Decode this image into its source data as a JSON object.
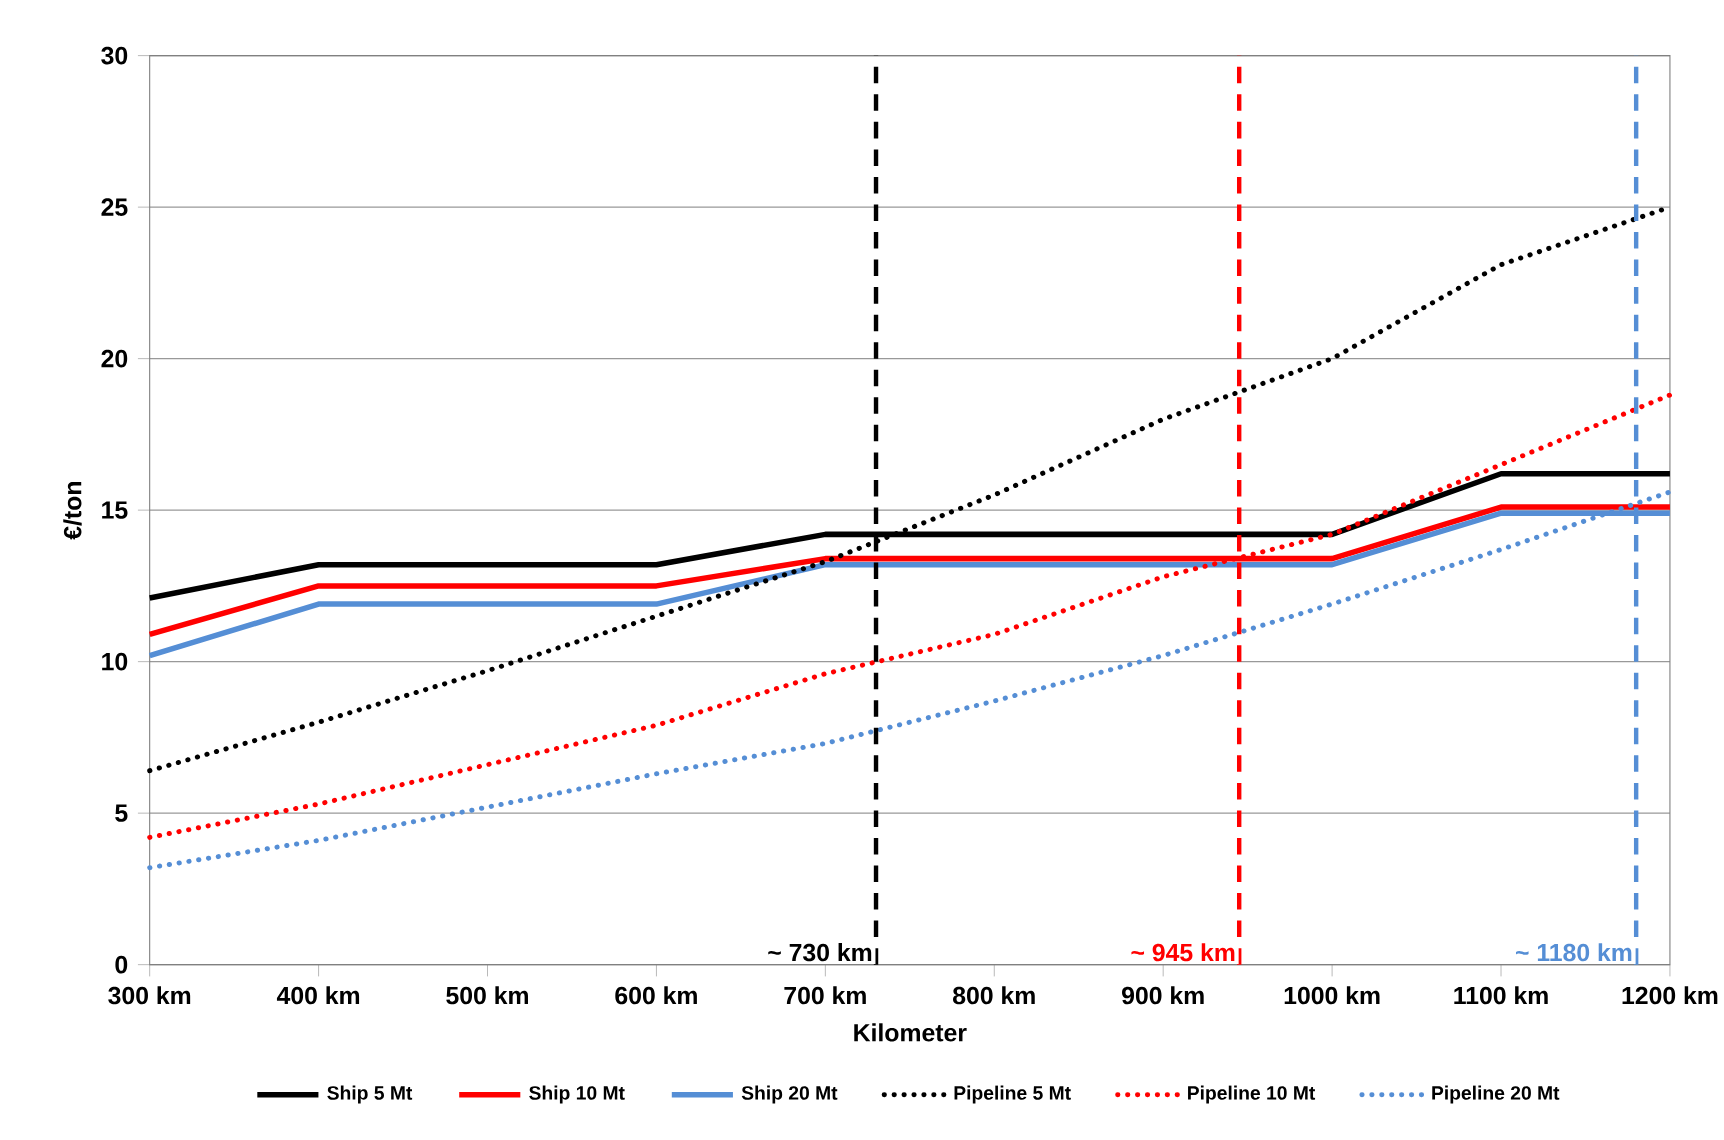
{
  "chart_data": {
    "type": "line",
    "xlabel": "Kilometer",
    "ylabel": "€/ton",
    "x": [
      300,
      400,
      500,
      600,
      700,
      800,
      900,
      1000,
      1100,
      1200
    ],
    "series": [
      {
        "name": "Ship 5 Mt",
        "color": "#000000",
        "line_style": "solid",
        "values": [
          12.1,
          13.2,
          13.2,
          13.2,
          14.2,
          14.2,
          14.2,
          14.2,
          16.2,
          16.2
        ]
      },
      {
        "name": "Ship 10 Mt",
        "color": "#ff0000",
        "line_style": "solid",
        "values": [
          10.9,
          12.5,
          12.5,
          12.5,
          13.4,
          13.4,
          13.4,
          13.4,
          15.1,
          15.1
        ]
      },
      {
        "name": "Ship 20 Mt",
        "color": "#558ed5",
        "line_style": "solid",
        "values": [
          10.2,
          11.9,
          11.9,
          11.9,
          13.2,
          13.2,
          13.2,
          13.2,
          14.9,
          14.9
        ]
      },
      {
        "name": "Pipeline 5 Mt",
        "color": "#000000",
        "line_style": "dotted",
        "values": [
          6.4,
          8.0,
          9.7,
          11.5,
          13.3,
          15.5,
          18.0,
          20.0,
          23.1,
          25.0
        ]
      },
      {
        "name": "Pipeline 10 Mt",
        "color": "#ff0000",
        "line_style": "dotted",
        "values": [
          4.2,
          5.3,
          6.6,
          7.9,
          9.6,
          10.9,
          12.8,
          14.2,
          16.5,
          18.8
        ]
      },
      {
        "name": "Pipeline 20 Mt",
        "color": "#558ed5",
        "line_style": "dotted",
        "values": [
          3.2,
          4.1,
          5.2,
          6.3,
          7.3,
          8.7,
          10.2,
          11.9,
          13.7,
          15.6
        ]
      }
    ],
    "xlim": [
      300,
      1200
    ],
    "ylim": [
      0,
      30
    ],
    "xticks": [
      {
        "value": 300,
        "label": "300 km"
      },
      {
        "value": 400,
        "label": "400 km"
      },
      {
        "value": 500,
        "label": "500 km"
      },
      {
        "value": 600,
        "label": "600 km"
      },
      {
        "value": 700,
        "label": "700 km"
      },
      {
        "value": 800,
        "label": "800 km"
      },
      {
        "value": 900,
        "label": "900 km"
      },
      {
        "value": 1000,
        "label": "1000 km"
      },
      {
        "value": 1100,
        "label": "1100 km"
      },
      {
        "value": 1200,
        "label": "1200 km"
      }
    ],
    "yticks": [
      0,
      5,
      10,
      15,
      20,
      25,
      30
    ],
    "ref_lines": [
      {
        "axis": "x",
        "value": 730,
        "label": "~ 730 km",
        "color": "#000000",
        "line_style": "dashed"
      },
      {
        "axis": "x",
        "value": 945,
        "label": "~ 945 km",
        "color": "#ff0000",
        "line_style": "dashed"
      },
      {
        "axis": "x",
        "value": 1180,
        "label": "~ 1180 km",
        "color": "#558ed5",
        "line_style": "dashed"
      }
    ],
    "grid": "y",
    "legend": "bottom",
    "marker": "none"
  }
}
